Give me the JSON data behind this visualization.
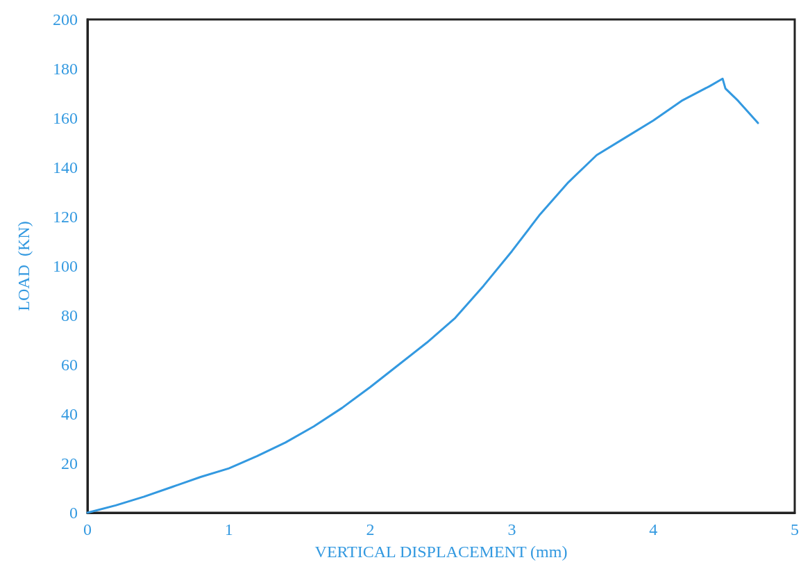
{
  "chart_data": {
    "type": "line",
    "xlabel": "VERTICAL DISPLACEMENT (mm)",
    "ylabel": "LOAD  (KN)",
    "xlim": [
      0,
      5
    ],
    "xticks": [
      0,
      1,
      2,
      3,
      4,
      5
    ],
    "ylim": [
      0,
      200
    ],
    "yticks": [
      0,
      20,
      40,
      60,
      80,
      100,
      120,
      140,
      160,
      180,
      200
    ],
    "grid": false,
    "marker": "none",
    "line_style": "solid",
    "series": [
      {
        "color": "#3399e0",
        "x": [
          0,
          0.2,
          0.4,
          0.6,
          0.8,
          1.0,
          1.2,
          1.4,
          1.6,
          1.8,
          2.0,
          2.2,
          2.4,
          2.6,
          2.8,
          3.0,
          3.2,
          3.4,
          3.6,
          3.8,
          4.0,
          4.2,
          4.4,
          4.49,
          4.51,
          4.6,
          4.74
        ],
        "values": [
          0,
          3,
          6.5,
          10.5,
          14.5,
          18,
          23,
          28.5,
          35,
          42.5,
          51,
          60,
          69,
          79,
          92,
          106,
          121,
          134,
          145,
          152,
          159,
          167,
          173,
          176,
          172,
          167,
          158
        ]
      }
    ]
  }
}
